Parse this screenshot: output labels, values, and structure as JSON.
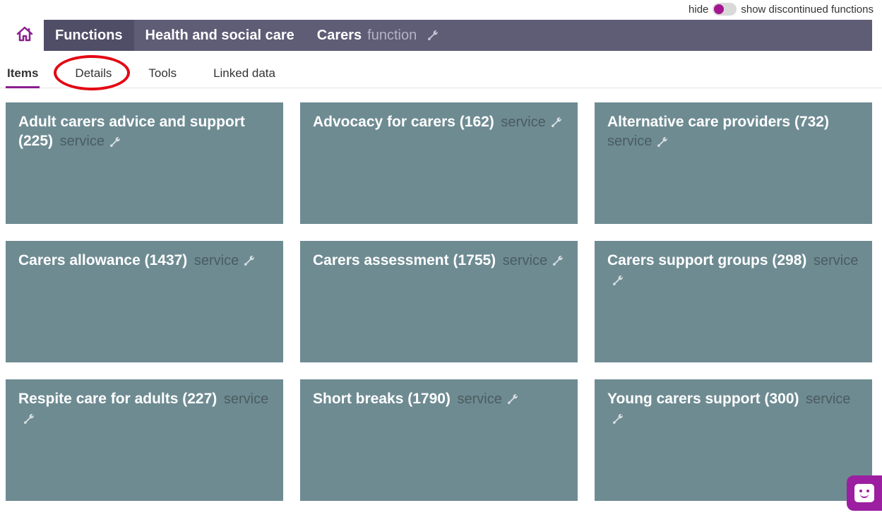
{
  "colors": {
    "accent": "#8a1e8f",
    "breadcrumb_bg": "#5f5c76",
    "breadcrumb_first_bg": "#504d67",
    "breadcrumb_sub": "#b6b3c5",
    "card_bg": "#6e8b92",
    "card_type_text": "#4a5c60",
    "highlight_ring": "#e30613",
    "toggle_knob": "#a3168f",
    "chat_bg": "#9b1fa0"
  },
  "toggle": {
    "left_label": "hide",
    "right_label": "show discontinued functions",
    "state": "hide"
  },
  "breadcrumb": {
    "items": [
      "Functions",
      "Health and social care"
    ],
    "current": {
      "label": "Carers",
      "type": "function"
    }
  },
  "tabs": {
    "items": [
      "Items",
      "Details",
      "Tools",
      "Linked data"
    ],
    "active_index": 0,
    "highlighted_index": 1
  },
  "cards": {
    "type_label": "service",
    "items": [
      {
        "title": "Adult carers advice and support",
        "count": 225
      },
      {
        "title": "Advocacy for carers",
        "count": 162
      },
      {
        "title": "Alternative care providers",
        "count": 732
      },
      {
        "title": "Carers allowance",
        "count": 1437
      },
      {
        "title": "Carers assessment",
        "count": 1755
      },
      {
        "title": "Carers support groups",
        "count": 298
      },
      {
        "title": "Respite care for adults",
        "count": 227
      },
      {
        "title": "Short breaks",
        "count": 1790
      },
      {
        "title": "Young carers support",
        "count": 300
      }
    ]
  }
}
